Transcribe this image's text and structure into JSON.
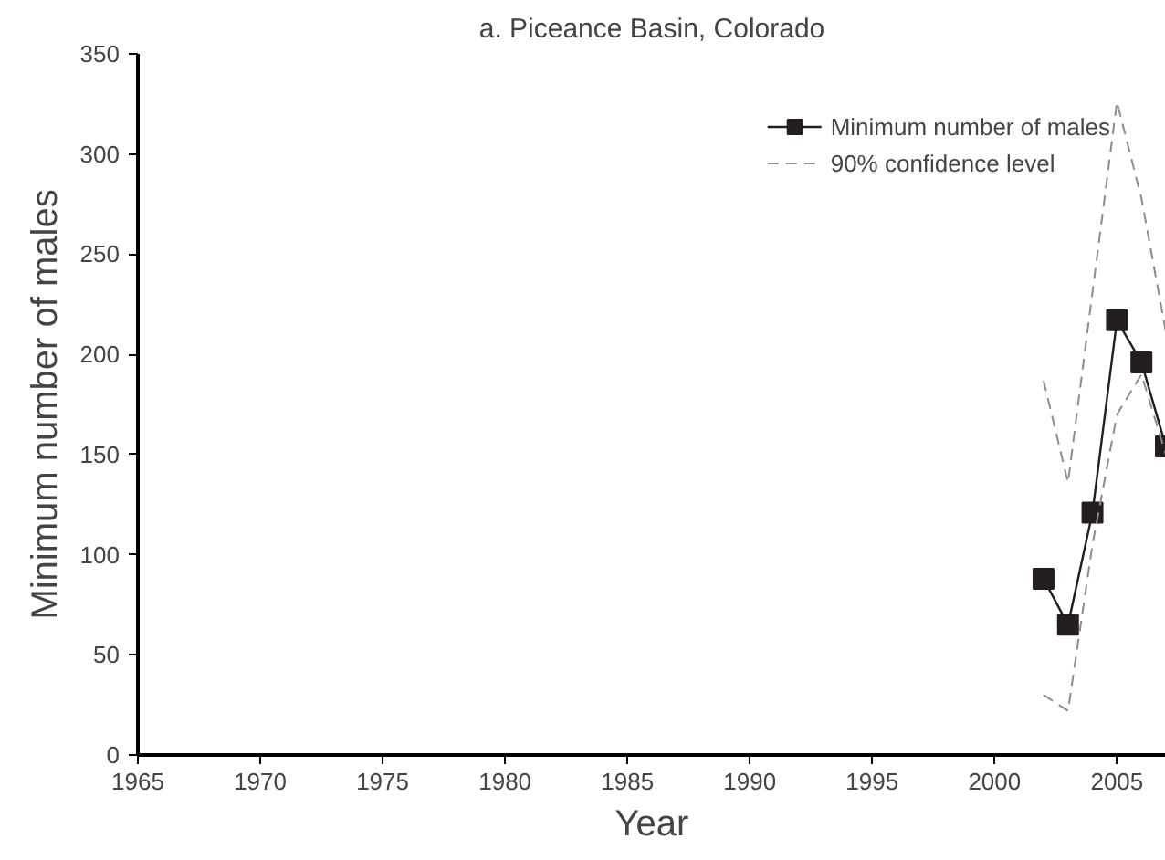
{
  "chart_data": {
    "type": "line",
    "title": "a. Piceance Basin, Colorado",
    "xlabel": "Year",
    "ylabel": "Minimum number of males",
    "x": [
      2002,
      2003,
      2004,
      2005,
      2006,
      2007
    ],
    "series": [
      {
        "name": "Minimum number of males",
        "color": "#231f20",
        "values": [
          88,
          65,
          121,
          217,
          196,
          154
        ],
        "marker": "square",
        "line_style": "solid"
      },
      {
        "name": "90% confidence level",
        "color": "#8c8c8c",
        "values": [
          187,
          136,
          231,
          326,
          278,
          211
        ],
        "marker": "none",
        "line_style": "dashed"
      },
      {
        "color": "#8c8c8c",
        "values": [
          30,
          22,
          105,
          170,
          190,
          150
        ],
        "marker": "none",
        "line_style": "dashed"
      }
    ],
    "xlim": [
      1965,
      2007
    ],
    "ylim": [
      0,
      350
    ],
    "xticks": [
      1965,
      1970,
      1975,
      1980,
      1985,
      1990,
      1995,
      2000,
      2005
    ],
    "yticks": [
      0,
      50,
      100,
      150,
      200,
      250,
      300,
      350
    ],
    "grid": false,
    "legend": "top right"
  }
}
